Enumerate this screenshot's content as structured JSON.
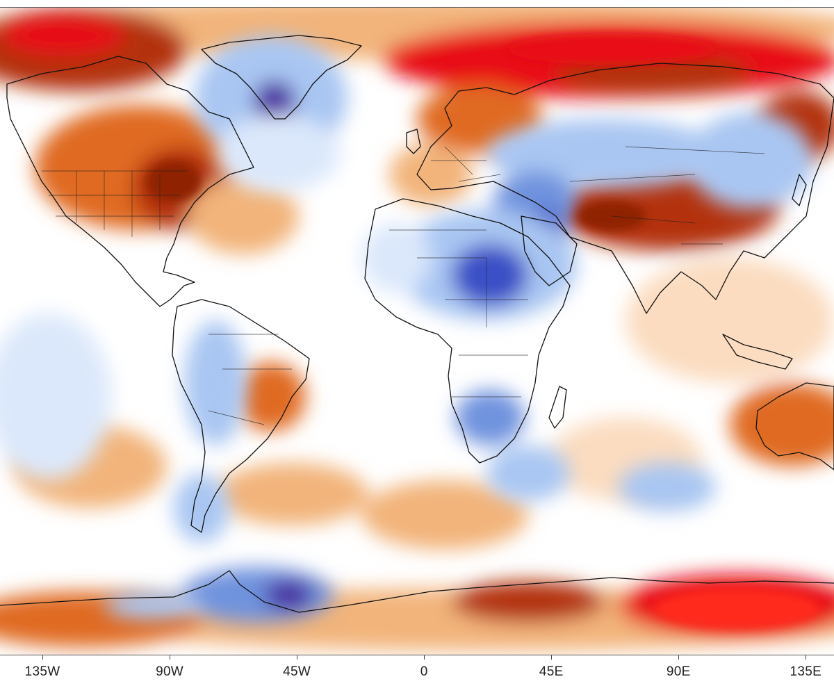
{
  "map": {
    "type": "temperature-anomaly-map",
    "projection": "equirectangular",
    "lon_range": [
      -150,
      145
    ],
    "colors": {
      "warm_strong": "#e80e16",
      "warm_dark": "#b33008",
      "warm_mid": "#e06a20",
      "warm_light": "#f2b47a",
      "warm_faint": "#fbdcc0",
      "neutral": "#ffffff",
      "cool_faint": "#dbe8fb",
      "cool_light": "#a9c6f2",
      "cool_mid": "#6f93de",
      "cool_strong": "#3a4fc6",
      "cool_deep": "#4a2aa0",
      "coastline": "#111111"
    }
  },
  "x_axis": {
    "ticks": [
      {
        "lon": -135,
        "label": "135W"
      },
      {
        "lon": -90,
        "label": "90W"
      },
      {
        "lon": -45,
        "label": "45W"
      },
      {
        "lon": 0,
        "label": "0"
      },
      {
        "lon": 45,
        "label": "45E"
      },
      {
        "lon": 90,
        "label": "90E"
      },
      {
        "lon": 135,
        "label": "135E"
      }
    ]
  }
}
